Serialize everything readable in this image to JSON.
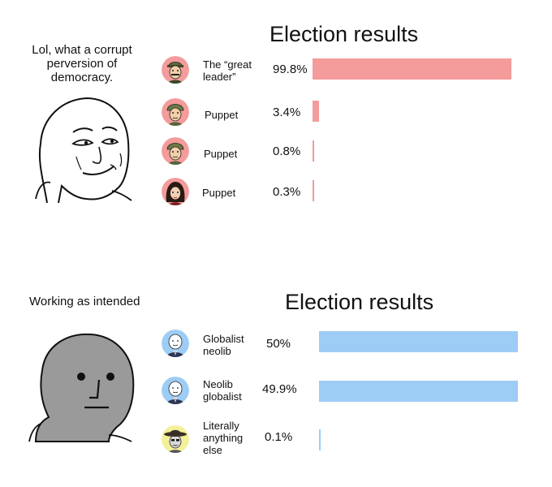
{
  "panels": [
    {
      "caption": "Lol, what a corrupt perversion of democracy.",
      "face": "smug-wojak",
      "title": "Election results",
      "bar_color": "#f49b9b",
      "candidates": [
        {
          "name": "The “great leader”",
          "percent_label": "99.8%",
          "value": 99.8,
          "avatar": "military-cap-man"
        },
        {
          "name": "Puppet",
          "percent_label": "3.4%",
          "value": 3.4,
          "avatar": "soldier-helmet-man"
        },
        {
          "name": "Puppet",
          "percent_label": "0.8%",
          "value": 0.8,
          "avatar": "soldier-helmet-man"
        },
        {
          "name": "Puppet",
          "percent_label": "0.3%",
          "value": 0.3,
          "avatar": "dark-haired-woman"
        }
      ]
    },
    {
      "caption": "Working as intended",
      "face": "npc-wojak",
      "title": "Election results",
      "bar_color": "#9dcdf5",
      "candidates": [
        {
          "name": "Globalist neolib",
          "percent_label": "50%",
          "value": 50,
          "avatar": "suited-wojak"
        },
        {
          "name": "Neolib globalist",
          "percent_label": "49.9%",
          "value": 49.9,
          "avatar": "suited-wojak"
        },
        {
          "name": "Literally anything else",
          "percent_label": "0.1%",
          "value": 0.1,
          "avatar": "cowboy-hat-man"
        }
      ]
    }
  ]
}
